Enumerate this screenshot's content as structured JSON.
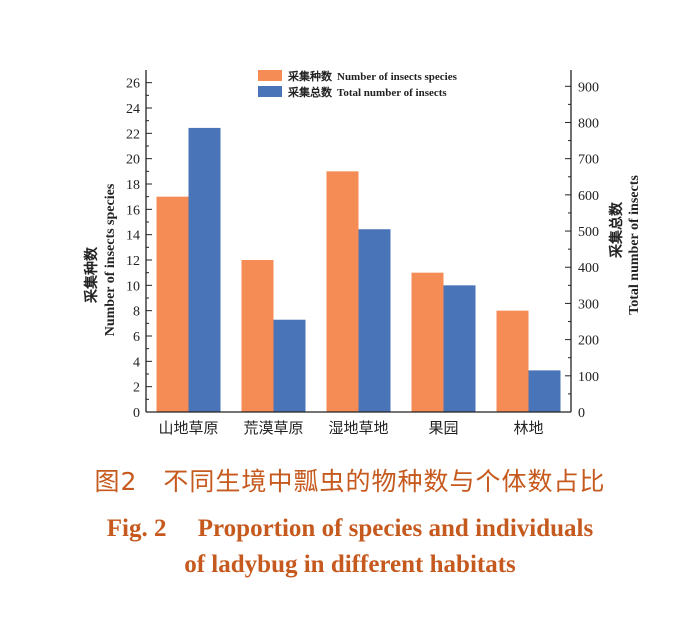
{
  "caption": {
    "cn": "图2　不同生境中瓢虫的物种数与个体数占比",
    "en_line1": "Fig. 2　 Proportion of species and individuals",
    "en_line2": "of ladybug in different habitats"
  },
  "colors": {
    "species": "#f58b55",
    "total": "#4a74b8",
    "axis": "#222222",
    "caption": "#c65a1e"
  },
  "chart_data": {
    "type": "bar",
    "categories": [
      "山地草原",
      "荒漠草原",
      "湿地草地",
      "果园",
      "林地"
    ],
    "series": [
      {
        "name": "采集种数  Number of insects species",
        "axis": "left",
        "values": [
          17,
          12,
          19,
          11,
          8
        ]
      },
      {
        "name": "采集总数  Total  number of insects",
        "axis": "right",
        "values": [
          785,
          255,
          505,
          350,
          115
        ]
      }
    ],
    "left_axis": {
      "label_cn": "采集种数",
      "label_en": "Number of insects species",
      "ylim": [
        0,
        27
      ],
      "ticks": [
        0,
        2,
        4,
        6,
        8,
        10,
        12,
        14,
        16,
        18,
        20,
        22,
        24,
        26
      ]
    },
    "right_axis": {
      "label_cn": "采集总数",
      "label_en": "Total number of insects",
      "ylim": [
        0,
        945
      ],
      "ticks": [
        0,
        100,
        200,
        300,
        400,
        500,
        600,
        700,
        800,
        900
      ]
    },
    "legend_position": "top-center",
    "grid": false
  }
}
